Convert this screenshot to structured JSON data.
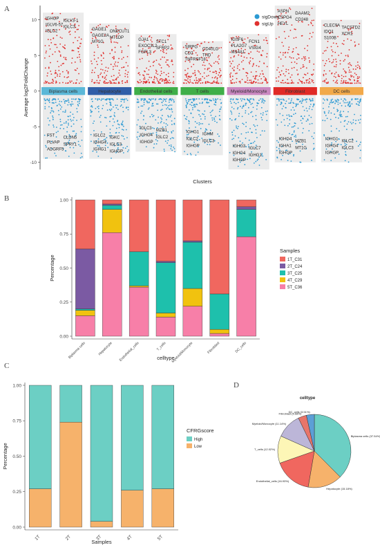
{
  "panels": {
    "a": "A",
    "b": "B",
    "c": "C",
    "d": "D"
  },
  "chart_data": [
    {
      "type": "scatter",
      "xlabel": "Clusters",
      "ylabel": "Average log2FoldChange",
      "ylim": [
        -11,
        12
      ],
      "yticks": [
        -10,
        -5,
        0,
        5,
        10
      ],
      "legend": {
        "position": "top-right",
        "entries": [
          {
            "name": "sigDown",
            "color": "#2b9ad3"
          },
          {
            "name": "sigUp",
            "color": "#e0312f"
          }
        ]
      },
      "clusters": [
        {
          "name": "Biplasma cells",
          "color": "#5bb8d8",
          "up_max": 11,
          "down_min": -9.5,
          "up_genes": [
            "IGHGP",
            "IGLV3-1",
            "IGLV6-57",
            "IGLC3",
            "IGLC2"
          ],
          "down_genes": [
            "FST",
            "CLDN5",
            "PLVAP",
            "SPRY1",
            "ADGRF5"
          ]
        },
        {
          "name": "Hepatocyte",
          "color": "#2f5ea8",
          "up_max": 9.5,
          "down_min": -9.5,
          "up_genes": [
            "GAGE1",
            "ONECUT1",
            "GAGE2A",
            "MT1DP",
            "MT1G"
          ],
          "down_genes": [
            "IGLC2",
            "IGKC",
            "IGHG4",
            "IGLC3",
            "IGHG1",
            "IGHGP"
          ]
        },
        {
          "name": "Endothelial cells",
          "color": "#3fae49",
          "up_max": 8,
          "down_min": -8.5,
          "up_genes": [
            "GJA1",
            "STC1",
            "EXOC3L2",
            "SFRP2",
            "FGFL3"
          ],
          "down_genes": [
            "IGLC3",
            "MZB1",
            "IGHG4",
            "IGLC2",
            "IGHGP"
          ]
        },
        {
          "name": "T cells",
          "color": "#3fae49",
          "up_max": 7,
          "down_min": -9,
          "up_genes": [
            "SIRPG",
            "CD40LG",
            "CD2",
            "THD",
            "TNFRSF18"
          ],
          "down_genes": [
            "IGHG1",
            "IGHM",
            "IGLC2",
            "IGLC3",
            "IGHGP"
          ]
        },
        {
          "name": "Myeloid/Monocyte",
          "color": "#c987c0",
          "up_max": 8,
          "down_min": -11,
          "up_genes": [
            "IGSF6",
            "FCN1",
            "PLA2G7",
            "VSIG4",
            "MS4A1"
          ],
          "down_genes": [
            "IGHG3",
            "IGLC7",
            "IGHG4",
            "IGHG1",
            "IGHGP"
          ]
        },
        {
          "name": "Fibroblast",
          "color": "#e02a26",
          "up_max": 12,
          "down_min": -10,
          "up_genes": [
            "ASPN",
            "DAAM2",
            "CSPG4",
            "CD248",
            "HEYL"
          ],
          "down_genes": [
            "IGHG4",
            "MZB1",
            "IGHA1",
            "MT1G",
            "IGHGP"
          ]
        },
        {
          "name": "DC cells",
          "color": "#f2a94a",
          "up_max": 10,
          "down_min": -10,
          "up_genes": [
            "CLEC9A",
            "TACSTD2",
            "IDO1",
            "XCR1",
            "S100B"
          ],
          "down_genes": [
            "IGHG1",
            "IGLC2",
            "IGHG4",
            "IGLC3",
            "IGHGP"
          ]
        }
      ]
    },
    {
      "type": "bar",
      "stacked": true,
      "xlabel": "celltype",
      "ylabel": "Percentage",
      "ylim": [
        0,
        1
      ],
      "yticks": [
        "0.00",
        "0.25",
        "0.50",
        "0.75",
        "1.00"
      ],
      "legend_title": "Samples",
      "legend": {
        "position": "right"
      },
      "categories": [
        "Biplasma cells",
        "Hepatocyte",
        "Endothelial_cells",
        "T_cells",
        "Myeloid/Monocyte",
        "Fibroblast",
        "DC_cells"
      ],
      "series": [
        {
          "name": "5T_C36",
          "color": "#f77fa8",
          "values": [
            0.15,
            0.76,
            0.36,
            0.14,
            0.22,
            0.02,
            0.73
          ]
        },
        {
          "name": "4T_C29",
          "color": "#f1c20f",
          "values": [
            0.04,
            0.17,
            0.01,
            0.03,
            0.13,
            0.03,
            0.0
          ]
        },
        {
          "name": "3T_C25",
          "color": "#1ec0ac",
          "values": [
            0.01,
            0.03,
            0.25,
            0.37,
            0.34,
            0.26,
            0.2
          ]
        },
        {
          "name": "2T_C24",
          "color": "#7b5aa3",
          "values": [
            0.44,
            0.01,
            0.0,
            0.01,
            0.01,
            0.0,
            0.02
          ]
        },
        {
          "name": "1T_C31",
          "color": "#f0675f",
          "values": [
            0.36,
            0.03,
            0.38,
            0.45,
            0.3,
            0.69,
            0.05
          ]
        }
      ]
    },
    {
      "type": "bar",
      "stacked": true,
      "xlabel": "Samples",
      "ylabel": "Percentage",
      "ylim": [
        0,
        1
      ],
      "yticks": [
        "0.00",
        "0.25",
        "0.50",
        "0.75",
        "1.00"
      ],
      "legend_title": "CFRGscore",
      "legend": {
        "position": "right"
      },
      "categories": [
        "1T",
        "2T",
        "3T",
        "4T",
        "5T"
      ],
      "series": [
        {
          "name": "Low",
          "color": "#f6b26b",
          "values": [
            0.27,
            0.74,
            0.04,
            0.26,
            0.27
          ]
        },
        {
          "name": "High",
          "color": "#6ccfc4",
          "values": [
            0.73,
            0.26,
            0.96,
            0.74,
            0.73
          ]
        }
      ]
    },
    {
      "type": "pie",
      "title": "celltype",
      "slices": [
        {
          "label": "Biplasma cells (37.54%)",
          "value": 37.54,
          "color": "#6ccfc4"
        },
        {
          "label": "Hepatocyte (15.18%)",
          "value": 15.18,
          "color": "#f6b26b"
        },
        {
          "label": "Endothelial_cells (16.93%)",
          "value": 16.93,
          "color": "#f0675f"
        },
        {
          "label": "T_cells (12.02%)",
          "value": 12.02,
          "color": "#fdf6b6"
        },
        {
          "label": "Myeloid/Monocyte (11.14%)",
          "value": 11.14,
          "color": "#bcb6d8"
        },
        {
          "label": "Fibroblast (3.68%)",
          "value": 3.68,
          "color": "#e8756a"
        },
        {
          "label": "DC_cells (3.51%)",
          "value": 3.51,
          "color": "#5c9fd6"
        }
      ]
    }
  ]
}
